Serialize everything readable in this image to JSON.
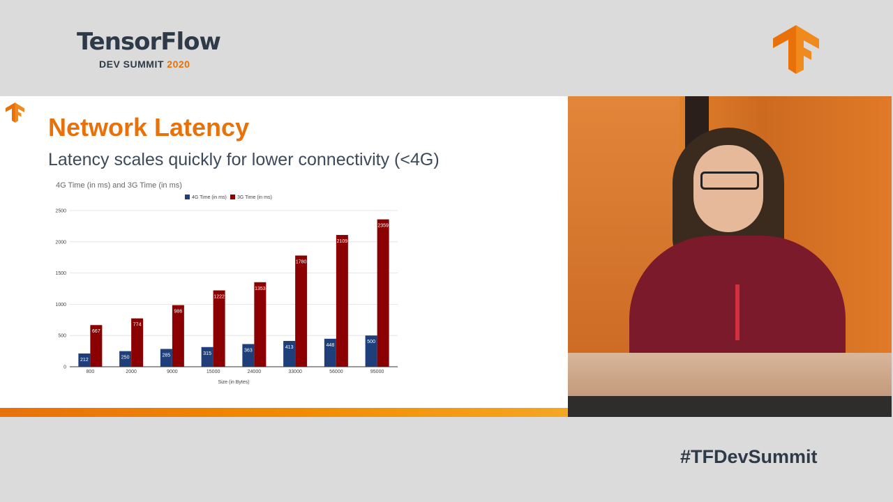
{
  "branding": {
    "title": "TensorFlow",
    "subtitle_prefix": "DEV SUMMIT",
    "subtitle_year": "2020",
    "hashtag": "#TFDevSummit",
    "logo_icon": "tensorflow-logo",
    "accent_color": "#e8710a",
    "text_color": "#2f3a48"
  },
  "slide": {
    "title": "Network Latency",
    "subtitle": "Latency scales quickly for lower connectivity (<4G)"
  },
  "chart_data": {
    "type": "bar",
    "title": "4G Time (in ms) and 3G Time (in ms)",
    "xlabel": "Size (in Bytes)",
    "ylabel": "",
    "categories": [
      "800",
      "2000",
      "9000",
      "15000",
      "24000",
      "33000",
      "56000",
      "95000"
    ],
    "series": [
      {
        "name": "4G Time (in ms)",
        "color": "#1f3f7a",
        "values": [
          212,
          250,
          285,
          315,
          363,
          413,
          448,
          500
        ]
      },
      {
        "name": "3G Time (in ms)",
        "color": "#8b0000",
        "values": [
          667,
          774,
          986,
          1222,
          1353,
          1780,
          2109,
          2359
        ]
      }
    ],
    "ylim": [
      0,
      2500
    ],
    "yticks": [
      0,
      500,
      1000,
      1500,
      2000,
      2500
    ],
    "grid": true,
    "legend_position": "top-center",
    "data_labels": true
  }
}
